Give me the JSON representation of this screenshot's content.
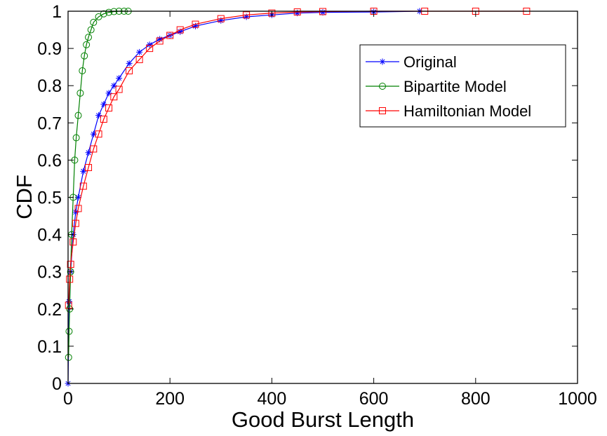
{
  "chart_data": {
    "type": "line",
    "title": "",
    "xlabel": "Good Burst Length",
    "ylabel": "CDF",
    "xlim": [
      0,
      1000
    ],
    "ylim": [
      0,
      1
    ],
    "x_ticks": [
      0,
      200,
      400,
      600,
      800,
      1000
    ],
    "x_tick_labels": [
      "0",
      "200",
      "400",
      "600",
      "800",
      "1000"
    ],
    "y_ticks": [
      0,
      0.1,
      0.2,
      0.3,
      0.4,
      0.5,
      0.6,
      0.7,
      0.8,
      0.9,
      1
    ],
    "y_tick_labels": [
      "0",
      "0.1",
      "0.2",
      "0.3",
      "0.4",
      "0.5",
      "0.6",
      "0.7",
      "0.8",
      "0.9",
      "1"
    ],
    "grid": false,
    "legend_position": "top-right",
    "series": [
      {
        "name": "Original",
        "color": "#0000ff",
        "marker": "asterisk",
        "x": [
          0,
          2,
          5,
          10,
          15,
          20,
          30,
          40,
          50,
          60,
          70,
          80,
          90,
          100,
          120,
          140,
          160,
          180,
          200,
          220,
          250,
          300,
          350,
          400,
          450,
          500,
          600,
          690
        ],
        "y": [
          0.0,
          0.22,
          0.3,
          0.4,
          0.46,
          0.5,
          0.57,
          0.62,
          0.67,
          0.72,
          0.75,
          0.78,
          0.8,
          0.82,
          0.86,
          0.89,
          0.91,
          0.925,
          0.935,
          0.945,
          0.96,
          0.975,
          0.985,
          0.99,
          0.995,
          0.997,
          0.998,
          1.0
        ]
      },
      {
        "name": "Bipartite Model",
        "color": "#008000",
        "marker": "circle",
        "x": [
          1,
          2,
          3,
          5,
          7,
          10,
          13,
          16,
          20,
          24,
          28,
          32,
          36,
          40,
          45,
          50,
          60,
          70,
          80,
          90,
          100,
          110,
          118
        ],
        "y": [
          0.07,
          0.14,
          0.2,
          0.3,
          0.4,
          0.5,
          0.6,
          0.66,
          0.72,
          0.78,
          0.84,
          0.88,
          0.91,
          0.93,
          0.95,
          0.97,
          0.985,
          0.993,
          0.997,
          0.999,
          1.0,
          1.0,
          1.0
        ]
      },
      {
        "name": "Hamiltonian Model",
        "color": "#ff0000",
        "marker": "square",
        "x": [
          1,
          3,
          5,
          10,
          15,
          20,
          30,
          40,
          50,
          60,
          70,
          80,
          90,
          100,
          120,
          140,
          160,
          180,
          200,
          220,
          250,
          300,
          350,
          400,
          450,
          500,
          600,
          700,
          800,
          900
        ],
        "y": [
          0.21,
          0.28,
          0.32,
          0.38,
          0.43,
          0.47,
          0.53,
          0.58,
          0.63,
          0.67,
          0.71,
          0.74,
          0.77,
          0.79,
          0.84,
          0.87,
          0.9,
          0.92,
          0.935,
          0.95,
          0.965,
          0.98,
          0.99,
          0.995,
          0.998,
          0.999,
          1.0,
          1.0,
          1.0,
          1.0
        ]
      }
    ]
  }
}
